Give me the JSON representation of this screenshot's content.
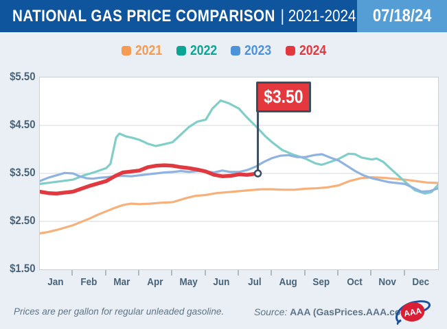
{
  "header": {
    "title": "NATIONAL GAS PRICE COMPARISON",
    "range": "| 2021-2024",
    "date": "07/18/24",
    "bar_color": "#0F559E",
    "date_box_color": "#549ED5"
  },
  "legend": [
    {
      "label": "2021",
      "color": "#F59B52"
    },
    {
      "label": "2022",
      "color": "#0CA495"
    },
    {
      "label": "2023",
      "color": "#4D93D9"
    },
    {
      "label": "2024",
      "color": "#E23840"
    }
  ],
  "chart_data": {
    "type": "line",
    "title": "National Gas Price Comparison 2021-2024",
    "x_unit": "months, 0 = Jan 1 through 12 = Dec 31",
    "categories": [
      "Jan",
      "Feb",
      "Mar",
      "Apr",
      "May",
      "Jun",
      "Jul",
      "Aug",
      "Sep",
      "Oct",
      "Nov",
      "Dec"
    ],
    "yticks": [
      {
        "label": "$5.50",
        "value": 5.5
      },
      {
        "label": "$4.50",
        "value": 4.5
      },
      {
        "label": "$3.50",
        "value": 3.5
      },
      {
        "label": "$2.50",
        "value": 2.5
      },
      {
        "label": "$1.50",
        "value": 1.5
      }
    ],
    "ylim": [
      1.5,
      5.5
    ],
    "grid": "horizontal gridlines at $2.50, $3.50, $4.50; plot border on all sides",
    "legend_position": "top-center",
    "series": [
      {
        "name": "2021",
        "line_color": "#F8B07A",
        "width": 3.2,
        "points": [
          [
            0,
            2.25
          ],
          [
            0.25,
            2.28
          ],
          [
            0.5,
            2.32
          ],
          [
            0.75,
            2.37
          ],
          [
            1,
            2.42
          ],
          [
            1.25,
            2.49
          ],
          [
            1.5,
            2.56
          ],
          [
            1.75,
            2.64
          ],
          [
            2,
            2.71
          ],
          [
            2.25,
            2.78
          ],
          [
            2.5,
            2.84
          ],
          [
            2.75,
            2.87
          ],
          [
            3,
            2.86
          ],
          [
            3.33,
            2.87
          ],
          [
            3.67,
            2.89
          ],
          [
            4,
            2.9
          ],
          [
            4.33,
            2.97
          ],
          [
            4.67,
            3.03
          ],
          [
            5,
            3.05
          ],
          [
            5.33,
            3.09
          ],
          [
            5.67,
            3.11
          ],
          [
            6,
            3.13
          ],
          [
            6.33,
            3.15
          ],
          [
            6.67,
            3.17
          ],
          [
            7,
            3.17
          ],
          [
            7.33,
            3.16
          ],
          [
            7.67,
            3.16
          ],
          [
            8,
            3.18
          ],
          [
            8.33,
            3.19
          ],
          [
            8.67,
            3.21
          ],
          [
            9,
            3.25
          ],
          [
            9.33,
            3.34
          ],
          [
            9.67,
            3.4
          ],
          [
            10,
            3.42
          ],
          [
            10.33,
            3.41
          ],
          [
            10.67,
            3.39
          ],
          [
            11,
            3.37
          ],
          [
            11.33,
            3.34
          ],
          [
            11.67,
            3.31
          ],
          [
            12,
            3.3
          ]
        ]
      },
      {
        "name": "2022",
        "line_color": "#7FCEC8",
        "width": 3.2,
        "points": [
          [
            0,
            3.28
          ],
          [
            0.33,
            3.31
          ],
          [
            0.67,
            3.34
          ],
          [
            1,
            3.37
          ],
          [
            1.33,
            3.46
          ],
          [
            1.67,
            3.53
          ],
          [
            2,
            3.61
          ],
          [
            2.13,
            3.7
          ],
          [
            2.3,
            4.25
          ],
          [
            2.4,
            4.33
          ],
          [
            2.6,
            4.27
          ],
          [
            2.8,
            4.24
          ],
          [
            3,
            4.2
          ],
          [
            3.25,
            4.12
          ],
          [
            3.5,
            4.07
          ],
          [
            3.75,
            4.11
          ],
          [
            4,
            4.15
          ],
          [
            4.25,
            4.31
          ],
          [
            4.5,
            4.47
          ],
          [
            4.75,
            4.58
          ],
          [
            5,
            4.62
          ],
          [
            5.2,
            4.85
          ],
          [
            5.45,
            5.02
          ],
          [
            5.7,
            4.96
          ],
          [
            6,
            4.85
          ],
          [
            6.25,
            4.66
          ],
          [
            6.57,
            4.44
          ],
          [
            6.8,
            4.27
          ],
          [
            7,
            4.15
          ],
          [
            7.3,
            3.99
          ],
          [
            7.6,
            3.9
          ],
          [
            8,
            3.81
          ],
          [
            8.3,
            3.71
          ],
          [
            8.5,
            3.68
          ],
          [
            8.75,
            3.74
          ],
          [
            9,
            3.8
          ],
          [
            9.3,
            3.91
          ],
          [
            9.5,
            3.9
          ],
          [
            9.7,
            3.83
          ],
          [
            10,
            3.79
          ],
          [
            10.15,
            3.81
          ],
          [
            10.35,
            3.74
          ],
          [
            10.6,
            3.58
          ],
          [
            11,
            3.33
          ],
          [
            11.3,
            3.15
          ],
          [
            11.6,
            3.08
          ],
          [
            11.8,
            3.11
          ],
          [
            12,
            3.26
          ]
        ]
      },
      {
        "name": "2023",
        "line_color": "#8FB3E0",
        "width": 3.2,
        "points": [
          [
            0,
            3.34
          ],
          [
            0.25,
            3.41
          ],
          [
            0.5,
            3.46
          ],
          [
            0.75,
            3.51
          ],
          [
            1,
            3.5
          ],
          [
            1.2,
            3.44
          ],
          [
            1.4,
            3.4
          ],
          [
            1.6,
            3.39
          ],
          [
            1.8,
            3.41
          ],
          [
            2,
            3.42
          ],
          [
            2.25,
            3.44
          ],
          [
            2.5,
            3.45
          ],
          [
            2.75,
            3.44
          ],
          [
            3,
            3.46
          ],
          [
            3.25,
            3.48
          ],
          [
            3.5,
            3.5
          ],
          [
            3.75,
            3.52
          ],
          [
            4,
            3.53
          ],
          [
            4.25,
            3.55
          ],
          [
            4.5,
            3.53
          ],
          [
            4.75,
            3.55
          ],
          [
            5,
            3.54
          ],
          [
            5.25,
            3.52
          ],
          [
            5.5,
            3.56
          ],
          [
            5.75,
            3.53
          ],
          [
            6,
            3.53
          ],
          [
            6.25,
            3.57
          ],
          [
            6.5,
            3.64
          ],
          [
            6.75,
            3.74
          ],
          [
            7,
            3.82
          ],
          [
            7.25,
            3.87
          ],
          [
            7.5,
            3.88
          ],
          [
            7.75,
            3.84
          ],
          [
            8,
            3.84
          ],
          [
            8.25,
            3.88
          ],
          [
            8.5,
            3.9
          ],
          [
            8.75,
            3.83
          ],
          [
            9,
            3.77
          ],
          [
            9.25,
            3.66
          ],
          [
            9.5,
            3.55
          ],
          [
            9.75,
            3.46
          ],
          [
            10,
            3.4
          ],
          [
            10.25,
            3.36
          ],
          [
            10.5,
            3.32
          ],
          [
            10.75,
            3.3
          ],
          [
            11,
            3.28
          ],
          [
            11.25,
            3.2
          ],
          [
            11.5,
            3.12
          ],
          [
            11.75,
            3.13
          ],
          [
            12,
            3.19
          ]
        ]
      },
      {
        "name": "2024",
        "line_color": "#E03A40",
        "width": 5.5,
        "points": [
          [
            0,
            3.12
          ],
          [
            0.25,
            3.09
          ],
          [
            0.5,
            3.08
          ],
          [
            0.75,
            3.1
          ],
          [
            1,
            3.12
          ],
          [
            1.25,
            3.18
          ],
          [
            1.5,
            3.24
          ],
          [
            1.75,
            3.29
          ],
          [
            2,
            3.34
          ],
          [
            2.25,
            3.44
          ],
          [
            2.5,
            3.52
          ],
          [
            2.75,
            3.54
          ],
          [
            3,
            3.56
          ],
          [
            3.25,
            3.63
          ],
          [
            3.5,
            3.66
          ],
          [
            3.75,
            3.67
          ],
          [
            4,
            3.66
          ],
          [
            4.25,
            3.63
          ],
          [
            4.5,
            3.61
          ],
          [
            4.75,
            3.58
          ],
          [
            5,
            3.54
          ],
          [
            5.25,
            3.47
          ],
          [
            5.5,
            3.44
          ],
          [
            5.75,
            3.45
          ],
          [
            6,
            3.48
          ],
          [
            6.25,
            3.47
          ],
          [
            6.57,
            3.5
          ]
        ]
      }
    ],
    "annotation": {
      "label": "$3.50",
      "x": 6.57,
      "y": 3.5,
      "flag_color": "#E2383E",
      "pole_color": "#3B4D5F",
      "marker": "white circle with dark outline at 2024 line endpoint (Jul 18)"
    }
  },
  "footer": {
    "note": "Prices are per gallon for regular unleaded gasoline.",
    "source_label": "Source:",
    "source_value": "AAA (GasPrices.AAA.com)",
    "logo_text": "AAA"
  }
}
